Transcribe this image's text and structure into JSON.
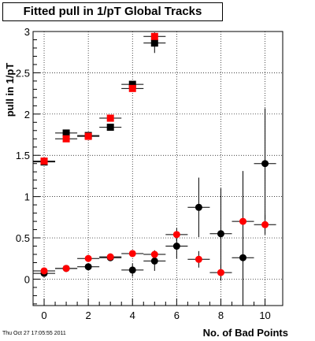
{
  "title": "Fitted pull in 1/pT  Global Tracks",
  "timestamp": "Thu Oct 27 17:05:55 2011",
  "chart_data": {
    "type": "scatter",
    "xlabel": "No. of Bad Points",
    "ylabel": "pull in 1/pT",
    "xlim": [
      -0.5,
      10.8
    ],
    "ylim": [
      -0.32,
      3.0
    ],
    "xticks": [
      0,
      2,
      4,
      6,
      8,
      10
    ],
    "yticks": [
      0,
      0.5,
      1,
      1.5,
      2,
      2.5,
      3
    ],
    "ytick_labels": [
      "0",
      "0.5",
      "1",
      "1.5",
      "2",
      "2.5",
      "3"
    ],
    "grid": true,
    "series": [
      {
        "marker": "square",
        "color": "#000000",
        "points": [
          {
            "x": 0,
            "y": 1.42,
            "xerr": 0.5,
            "yerr": 0.01
          },
          {
            "x": 1,
            "y": 1.77,
            "xerr": 0.5,
            "yerr": 0.01
          },
          {
            "x": 2,
            "y": 1.74,
            "xerr": 0.5,
            "yerr": 0.01
          },
          {
            "x": 3,
            "y": 1.84,
            "xerr": 0.5,
            "yerr": 0.02
          },
          {
            "x": 4,
            "y": 2.36,
            "xerr": 0.5,
            "yerr": 0.03
          },
          {
            "x": 5,
            "y": 2.86,
            "xerr": 0.5,
            "yerr": 0.12
          }
        ]
      },
      {
        "marker": "square",
        "color": "#ff0000",
        "points": [
          {
            "x": 0,
            "y": 1.43,
            "xerr": 0.5,
            "yerr": 0.01
          },
          {
            "x": 1,
            "y": 1.7,
            "xerr": 0.5,
            "yerr": 0.01
          },
          {
            "x": 2,
            "y": 1.73,
            "xerr": 0.5,
            "yerr": 0.01
          },
          {
            "x": 3,
            "y": 1.95,
            "xerr": 0.5,
            "yerr": 0.02
          },
          {
            "x": 4,
            "y": 2.31,
            "xerr": 0.5,
            "yerr": 0.03
          },
          {
            "x": 5,
            "y": 2.94,
            "xerr": 0.5,
            "yerr": 0.05
          }
        ]
      },
      {
        "marker": "circle",
        "color": "#000000",
        "points": [
          {
            "x": 0,
            "y": 0.07,
            "xerr": 0.5,
            "yerr": 0.01
          },
          {
            "x": 1,
            "y": 0.13,
            "xerr": 0.5,
            "yerr": 0.01
          },
          {
            "x": 2,
            "y": 0.15,
            "xerr": 0.5,
            "yerr": 0.03
          },
          {
            "x": 3,
            "y": 0.26,
            "xerr": 0.5,
            "yerr": 0.04
          },
          {
            "x": 4,
            "y": 0.11,
            "xerr": 0.5,
            "yerr": 0.08
          },
          {
            "x": 5,
            "y": 0.22,
            "xerr": 0.5,
            "yerr": 0.12
          },
          {
            "x": 6,
            "y": 0.4,
            "xerr": 0.5,
            "yerr": 0.15
          },
          {
            "x": 7,
            "y": 0.87,
            "xerr": 0.5,
            "yerr": 0.36
          },
          {
            "x": 8,
            "y": 0.55,
            "xerr": 0.5,
            "yerr": 0.55
          },
          {
            "x": 9,
            "y": 0.26,
            "xerr": 0.5,
            "yerr": 1.05
          },
          {
            "x": 10,
            "y": 1.4,
            "xerr": 0.5,
            "yerr": 0.67
          }
        ]
      },
      {
        "marker": "circle",
        "color": "#ff0000",
        "points": [
          {
            "x": 0,
            "y": 0.1,
            "xerr": 0.5,
            "yerr": 0.01
          },
          {
            "x": 1,
            "y": 0.13,
            "xerr": 0.5,
            "yerr": 0.01
          },
          {
            "x": 2,
            "y": 0.25,
            "xerr": 0.5,
            "yerr": 0.02
          },
          {
            "x": 3,
            "y": 0.27,
            "xerr": 0.5,
            "yerr": 0.03
          },
          {
            "x": 4,
            "y": 0.31,
            "xerr": 0.5,
            "yerr": 0.04
          },
          {
            "x": 5,
            "y": 0.3,
            "xerr": 0.5,
            "yerr": 0.05
          },
          {
            "x": 6,
            "y": 0.54,
            "xerr": 0.5,
            "yerr": 0.08
          },
          {
            "x": 7,
            "y": 0.24,
            "xerr": 0.5,
            "yerr": 0.1
          },
          {
            "x": 8,
            "y": 0.08,
            "xerr": 0.5,
            "yerr": 0.1
          },
          {
            "x": 9,
            "y": 0.7,
            "xerr": 0.5,
            "yerr": 0.1
          },
          {
            "x": 10,
            "y": 0.66,
            "xerr": 0.5,
            "yerr": 0.12
          }
        ]
      }
    ]
  }
}
